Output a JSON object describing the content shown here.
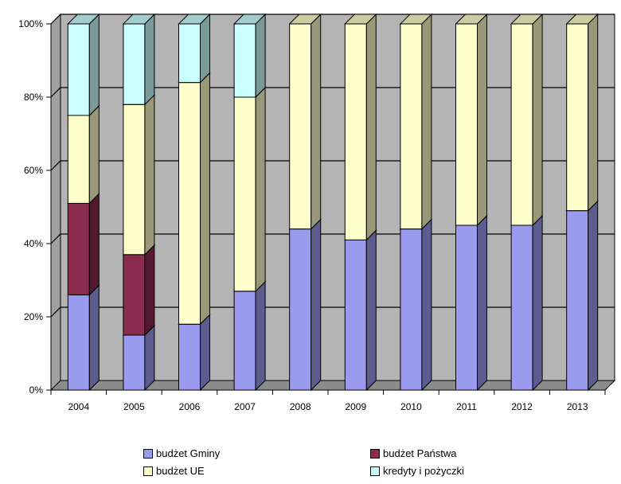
{
  "chart_data": {
    "type": "bar",
    "stacked": true,
    "percent": true,
    "categories": [
      "2004",
      "2005",
      "2006",
      "2007",
      "2008",
      "2009",
      "2010",
      "2011",
      "2012",
      "2013"
    ],
    "series": [
      {
        "name": "budżet Gminy",
        "color": "#9a9aef",
        "values": [
          26,
          15,
          18,
          27,
          44,
          41,
          44,
          45,
          45,
          49
        ]
      },
      {
        "name": "budżet Państwa",
        "color": "#8a2c4e",
        "values": [
          25,
          22,
          0,
          0,
          0,
          0,
          0,
          0,
          0,
          0
        ]
      },
      {
        "name": "budżet UE",
        "color": "#ffffcc",
        "values": [
          24,
          41,
          66,
          53,
          56,
          59,
          56,
          55,
          55,
          51
        ]
      },
      {
        "name": "kredyty i pożyczki",
        "color": "#ccffff",
        "values": [
          25,
          22,
          16,
          20,
          0,
          0,
          0,
          0,
          0,
          0
        ]
      }
    ],
    "y_ticks": [
      "0%",
      "20%",
      "40%",
      "60%",
      "80%",
      "100%"
    ],
    "ylim": [
      0,
      100
    ],
    "grid": true,
    "legend_position": "bottom"
  }
}
